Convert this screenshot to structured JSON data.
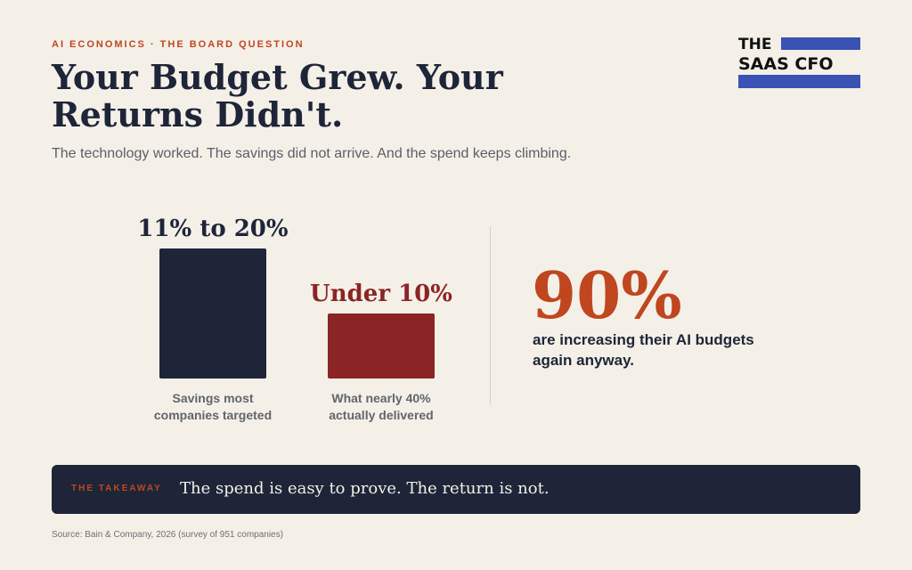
{
  "header": {
    "eyebrow": "AI ECONOMICS · THE BOARD QUESTION",
    "title": "Your Budget Grew. Your Returns Didn't.",
    "subtitle": "The technology worked. The savings did not arrive. And the spend keeps climbing."
  },
  "logo": {
    "line1": "THE",
    "line2": "SAAS CFO"
  },
  "chart_data": {
    "type": "bar",
    "categories": [
      "Savings most companies targeted",
      "What nearly 40% actually delivered"
    ],
    "category_lines": [
      [
        "Savings most",
        "companies targeted"
      ],
      [
        "What nearly 40%",
        "actually delivered"
      ]
    ],
    "values": [
      20,
      10
    ],
    "data_labels": [
      "11% to 20%",
      "Under 10%"
    ],
    "colors": [
      "#1e2538",
      "#8b2525"
    ],
    "ylim": [
      0,
      20
    ],
    "grid": false,
    "title": "",
    "xlabel": "",
    "ylabel": ""
  },
  "stat": {
    "value": "90%",
    "description": "are increasing their AI budgets again anyway."
  },
  "takeaway": {
    "label": "THE TAKEAWAY",
    "text": "The spend is easy to prove. The return is not."
  },
  "source": "Source: Bain & Company, 2026 (survey of 951 companies)",
  "colors": {
    "background": "#f4f0e8",
    "navy": "#1e2538",
    "accent_orange": "#c0461f",
    "dark_red": "#8b2525",
    "logo_blue": "#3a52b4"
  }
}
